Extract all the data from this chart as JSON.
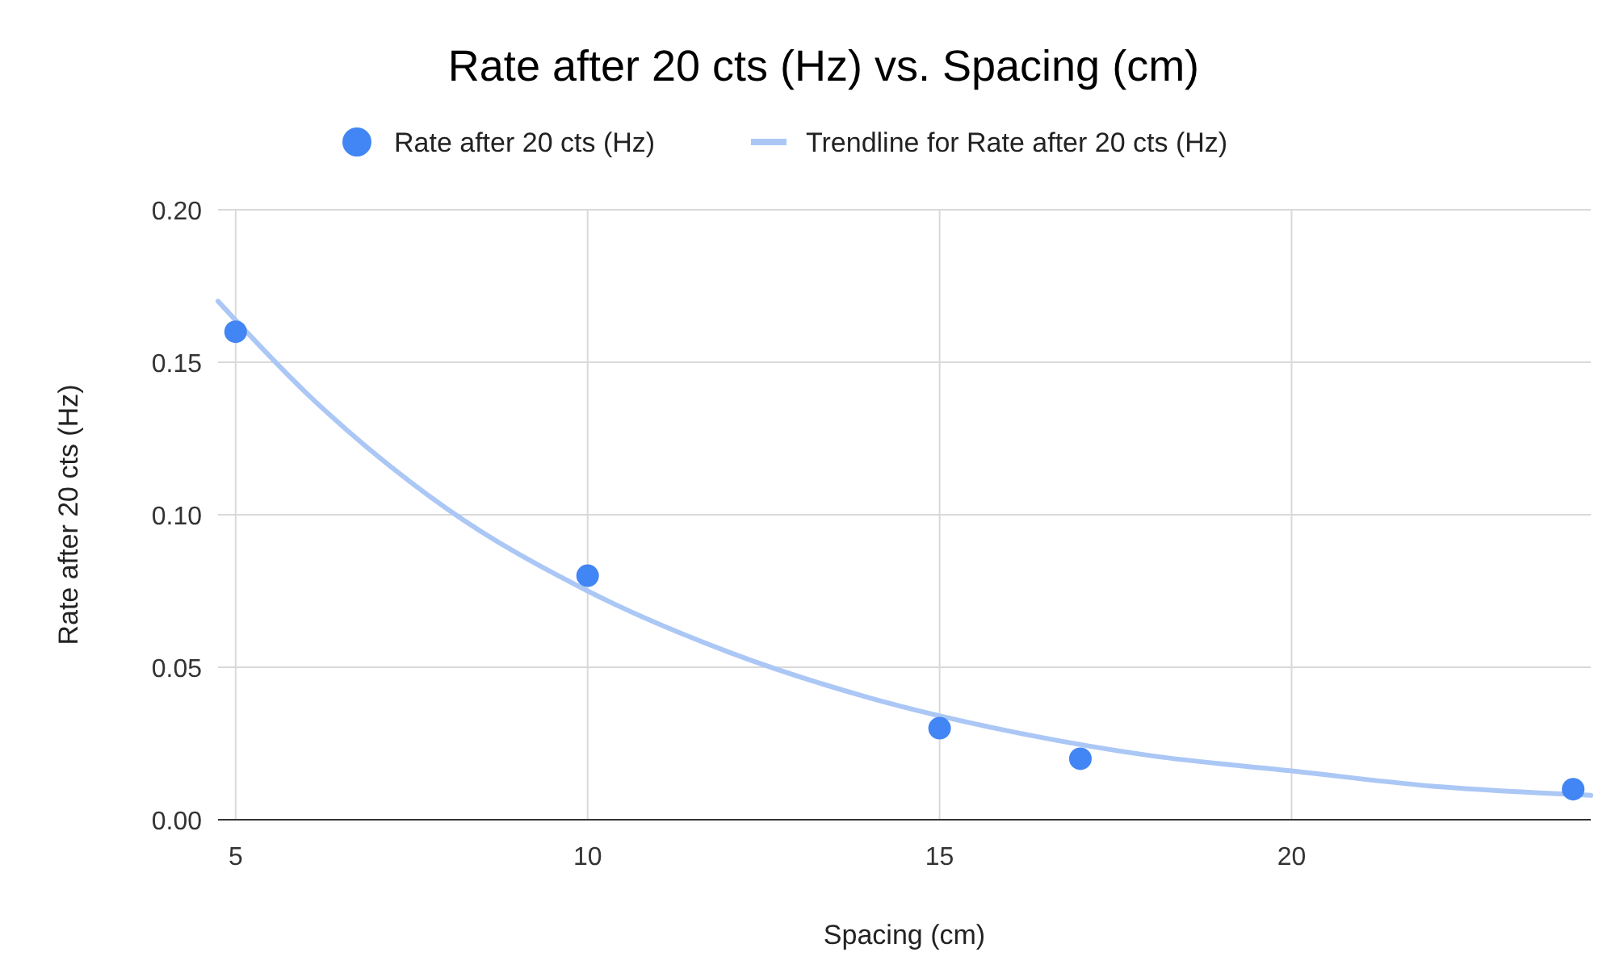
{
  "chart_data": {
    "type": "scatter",
    "title": "Rate after 20 cts (Hz) vs. Spacing (cm)",
    "xlabel": "Spacing (cm)",
    "ylabel": "Rate after 20 cts (Hz)",
    "series": [
      {
        "name": "Rate after 20 cts (Hz)",
        "marker": "circle",
        "color": "#4285f4",
        "x": [
          5,
          10,
          15,
          17,
          24
        ],
        "values": [
          0.16,
          0.08,
          0.03,
          0.02,
          0.01
        ]
      },
      {
        "name": "Trendline for Rate after 20 cts (Hz)",
        "type": "line",
        "color": "#abc7f5",
        "x": [
          4.75,
          6,
          8,
          10,
          12,
          14,
          16,
          18,
          20,
          22,
          24.25
        ],
        "values": [
          0.17,
          0.14,
          0.102,
          0.075,
          0.055,
          0.04,
          0.029,
          0.021,
          0.016,
          0.011,
          0.008
        ]
      }
    ],
    "xlim": [
      4.75,
      24.25
    ],
    "xticks": [
      5,
      10,
      15,
      20
    ],
    "ylim": [
      0,
      0.2
    ],
    "yticks": [
      {
        "value": 0,
        "label": "0.00"
      },
      {
        "value": 0.05,
        "label": "0.05"
      },
      {
        "value": 0.1,
        "label": "0.10"
      },
      {
        "value": 0.15,
        "label": "0.15"
      },
      {
        "value": 0.2,
        "label": "0.20"
      }
    ],
    "grid": true,
    "legend": "top"
  }
}
